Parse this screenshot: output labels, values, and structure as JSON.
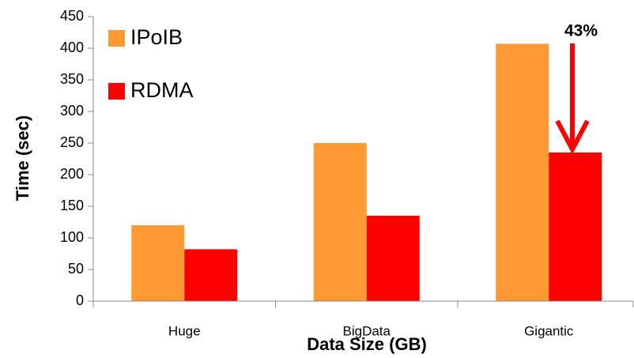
{
  "chart_data": {
    "type": "bar",
    "title": null,
    "x_label": "Data Size (GB)",
    "y_label": "Time (sec)",
    "categories": [
      "Huge",
      "BigData",
      "Gigantic"
    ],
    "series": [
      {
        "name": "IPoIB",
        "color": "#ff9933",
        "values": [
          120,
          250,
          407
        ]
      },
      {
        "name": "RDMA",
        "color": "#ff0000",
        "values": [
          82,
          135,
          235
        ]
      }
    ],
    "ylim": [
      0,
      450
    ],
    "yticks": [
      0,
      50,
      100,
      150,
      200,
      250,
      300,
      350,
      400,
      450
    ],
    "grid": false,
    "legend": "top-left",
    "annotations": [
      {
        "text": "43%"
      }
    ]
  }
}
